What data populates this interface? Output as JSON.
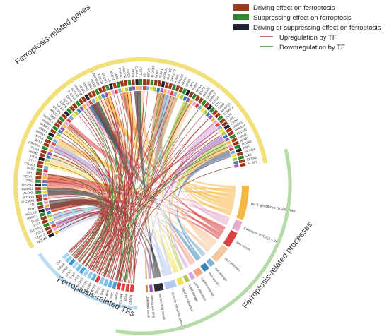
{
  "legend": {
    "items": [
      {
        "label": "Driving effect on ferroptosis",
        "color": "#9a3b1e",
        "kind": "box"
      },
      {
        "label": "Suppressing effect on ferroptosis",
        "color": "#2f8a2f",
        "kind": "box"
      },
      {
        "label": "Driving or suppressing effect on ferroptosis",
        "color": "#1c2230",
        "kind": "box"
      },
      {
        "label": "Upregulation by TF",
        "color": "#b23b3b",
        "kind": "line"
      },
      {
        "label": "Downregulation by TF",
        "color": "#3a8a2a",
        "kind": "line"
      }
    ]
  },
  "groups": {
    "genes": {
      "label": "Ferroptosis-related genes",
      "color": "#f2e07a"
    },
    "tfs": {
      "label": "Ferroptosis-related TFs",
      "color": "#bcdcf2"
    },
    "processes": {
      "label": "Ferroptosis-related processes",
      "color": "#b6dba8"
    }
  },
  "genes_left": [
    "NCOA4",
    "VDAC2",
    "ACSL4",
    "SLC7A11",
    "GPX4",
    "TFRC",
    "HMOX1",
    "NFE2L2",
    "FTH1",
    "FTL",
    "SLC40A1",
    "ALOX15",
    "ALOX5",
    "ALOX12",
    "LPCAT3",
    "TP53",
    "KEAP1",
    "SAT1",
    "GLS2",
    "CHAC1",
    "ATF3",
    "ATF4",
    "AIFM2",
    "PLIN4",
    "CDKN1A",
    "NFS1",
    "MT1G",
    "PRDX6",
    "CISD1",
    "STMN1",
    "HSPB1",
    "TXNRD1",
    "CBS",
    "ABCC1",
    "GSTP1",
    "GPX2",
    "CARS",
    "SQLE",
    "GPX6",
    "SLC3A2",
    "SLC1A5",
    "FANCD2",
    "NQO1",
    "HSPA5",
    "CD44",
    "IREB2",
    "LINC00336",
    "MIR137",
    "BECN1",
    "CS",
    "ACACA",
    "ZEB1",
    "PHKG2",
    "HMGCR",
    "ACO1",
    "DPP4",
    "ELAVL1",
    "FDFT1",
    "CP",
    "HIF1A",
    "ALOXE3",
    "NOX1",
    "PEBP1",
    "AKR1C1",
    "AKR1C2",
    "AKR1C3",
    "KRAS",
    "PTGS2",
    "NRAS",
    "LPIN1"
  ],
  "genes_right": [
    "YAP1",
    "PRNP",
    "NOX4",
    "EMC2",
    "CHMP5",
    "CHMP6",
    "PARK7",
    "CISD2",
    "CTH",
    "CD82",
    "MAPK14",
    "STEAP3",
    "SCD",
    "LIPC",
    "CYBB",
    "DUOX1",
    "DHODH",
    "PROM2",
    "GCH1",
    "NNMT",
    "OTUB1",
    "FSP1",
    "HILPDA",
    "CA9",
    "SESN2",
    "ACSF2"
  ],
  "genes_right_bottom": [
    "CHMP6",
    "CHMP5",
    "SOX2",
    "VDAC3"
  ],
  "genes_left_bottom": [
    "NQO1",
    "CDO1",
    "AIFM2",
    "PLIN4",
    "CDKN1A",
    "NFS1",
    "MT1G",
    "PRKAA1",
    "PSAT1",
    "CBS",
    "STMN1",
    "HSPB1",
    "TXNRD1",
    "TXNIP",
    "CHAC1",
    "ABCC1",
    "GSTP1",
    "GPX4",
    "GLS2",
    "GPX2",
    "GPX6",
    "SLC1A5",
    "SLC3A2",
    "SLC7A11"
  ],
  "tfs": [
    "HIF1A",
    "NFE2L2",
    "TP53",
    "ATF4",
    "ATF3",
    "YAP1",
    "SREBF1",
    "STAT3",
    "SP1",
    "MYC",
    "BACH1",
    "TFAP2A",
    "SOX2",
    "NFKB1",
    "JUN",
    "CEBPB",
    "FOXO4",
    "ETS1"
  ],
  "processes": [
    {
      "label": "(Xc⁻)–glutathione (GSH)– RAR",
      "color": "#f5b845"
    },
    {
      "label": "Coenzyme Q (CoQ) – RAR",
      "color": "#e7a9c8"
    },
    {
      "label": "Iron import",
      "color": "#d94040"
    },
    {
      "label": "Iron utilization",
      "color": "#f6c79a"
    },
    {
      "label": "Iron storage",
      "color": "#7fb3d6"
    },
    {
      "label": "Iron export",
      "color": "#3a84b5"
    },
    {
      "label": "Lipid synthesis",
      "color": "#f0a38b"
    },
    {
      "label": "Lipid utilization",
      "color": "#d9a4e0"
    },
    {
      "label": "Lipid storage",
      "color": "#b0c84a"
    },
    {
      "label": "Lipid peroxidation",
      "color": "#f4e04a"
    },
    {
      "label": "Glucose metabolic pathway",
      "color": "#b7c9f0"
    },
    {
      "label": "Amino acid metab",
      "color": "#2e2e38"
    },
    {
      "label": "Membrane dmg",
      "color": "#9b59b6"
    },
    {
      "label": "Unknown mech",
      "color": "#c58b4a"
    }
  ],
  "tf_labels": [
    "CEBP1",
    "ATF4",
    "CEBPB",
    "NRF2",
    "YAP1",
    "MYC",
    "TP53",
    "TP53",
    "ATF3",
    "RUNX",
    "ETS1",
    "STAT3",
    "GTF2",
    "TFAP",
    "SOX2",
    "NFKB",
    "HIF1A",
    "ZNF"
  ]
}
